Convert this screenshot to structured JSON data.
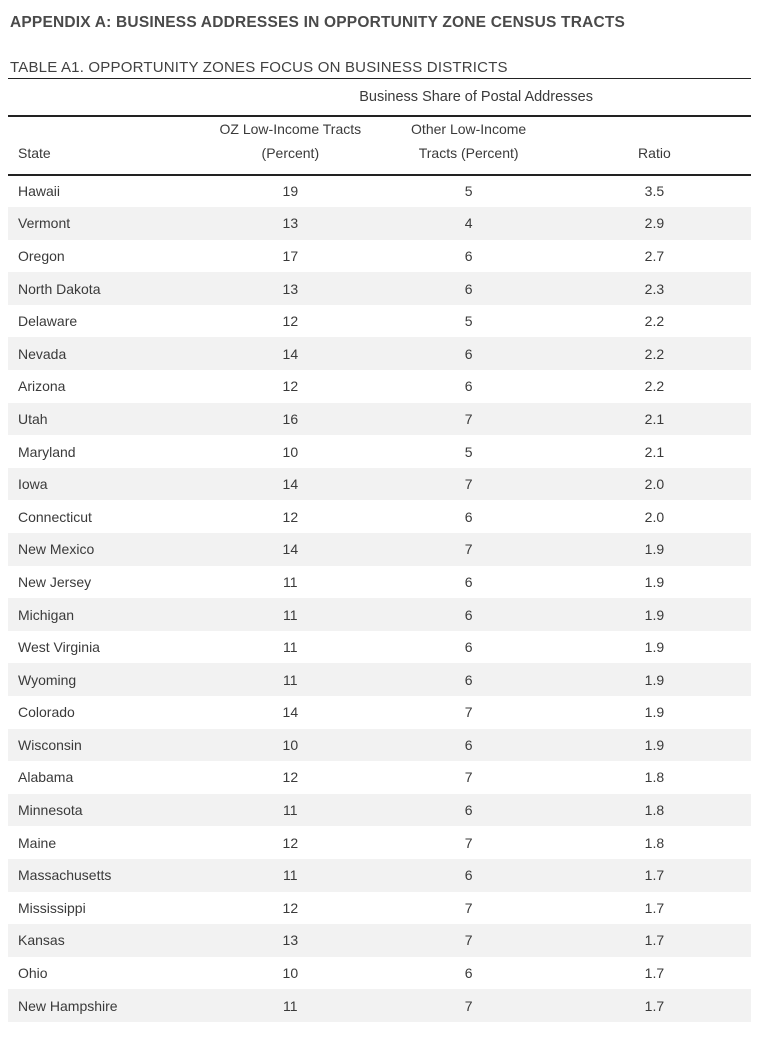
{
  "page": {
    "appendix_title": "APPENDIX A: BUSINESS ADDRESSES IN OPPORTUNITY ZONE CENSUS TRACTS",
    "table_title": "TABLE A1. OPPORTUNITY ZONES FOCUS ON BUSINESS DISTRICTS"
  },
  "table": {
    "span_header": "Business Share of Postal Addresses",
    "columns": {
      "state": "State",
      "oz": {
        "line1": "OZ Low-Income Tracts",
        "line2": "(Percent)"
      },
      "other": {
        "line1": "Other Low-Income",
        "line2": "Tracts (Percent)"
      },
      "ratio": "Ratio"
    },
    "rows": [
      {
        "state": "Hawaii",
        "oz": 19,
        "other": 5,
        "ratio": "3.5"
      },
      {
        "state": "Vermont",
        "oz": 13,
        "other": 4,
        "ratio": "2.9"
      },
      {
        "state": "Oregon",
        "oz": 17,
        "other": 6,
        "ratio": "2.7"
      },
      {
        "state": "North Dakota",
        "oz": 13,
        "other": 6,
        "ratio": "2.3"
      },
      {
        "state": "Delaware",
        "oz": 12,
        "other": 5,
        "ratio": "2.2"
      },
      {
        "state": "Nevada",
        "oz": 14,
        "other": 6,
        "ratio": "2.2"
      },
      {
        "state": "Arizona",
        "oz": 12,
        "other": 6,
        "ratio": "2.2"
      },
      {
        "state": "Utah",
        "oz": 16,
        "other": 7,
        "ratio": "2.1"
      },
      {
        "state": "Maryland",
        "oz": 10,
        "other": 5,
        "ratio": "2.1"
      },
      {
        "state": "Iowa",
        "oz": 14,
        "other": 7,
        "ratio": "2.0"
      },
      {
        "state": "Connecticut",
        "oz": 12,
        "other": 6,
        "ratio": "2.0"
      },
      {
        "state": "New Mexico",
        "oz": 14,
        "other": 7,
        "ratio": "1.9"
      },
      {
        "state": "New Jersey",
        "oz": 11,
        "other": 6,
        "ratio": "1.9"
      },
      {
        "state": "Michigan",
        "oz": 11,
        "other": 6,
        "ratio": "1.9"
      },
      {
        "state": "West Virginia",
        "oz": 11,
        "other": 6,
        "ratio": "1.9"
      },
      {
        "state": "Wyoming",
        "oz": 11,
        "other": 6,
        "ratio": "1.9"
      },
      {
        "state": "Colorado",
        "oz": 14,
        "other": 7,
        "ratio": "1.9"
      },
      {
        "state": "Wisconsin",
        "oz": 10,
        "other": 6,
        "ratio": "1.9"
      },
      {
        "state": "Alabama",
        "oz": 12,
        "other": 7,
        "ratio": "1.8"
      },
      {
        "state": "Minnesota",
        "oz": 11,
        "other": 6,
        "ratio": "1.8"
      },
      {
        "state": "Maine",
        "oz": 12,
        "other": 7,
        "ratio": "1.8"
      },
      {
        "state": "Massachusetts",
        "oz": 11,
        "other": 6,
        "ratio": "1.7"
      },
      {
        "state": "Mississippi",
        "oz": 12,
        "other": 7,
        "ratio": "1.7"
      },
      {
        "state": "Kansas",
        "oz": 13,
        "other": 7,
        "ratio": "1.7"
      },
      {
        "state": "Ohio",
        "oz": 10,
        "other": 6,
        "ratio": "1.7"
      },
      {
        "state": "New Hampshire",
        "oz": 11,
        "other": 7,
        "ratio": "1.7"
      }
    ]
  },
  "colors": {
    "text": "#3a3a3a",
    "title": "#4a4a4a",
    "rule": "#222222",
    "stripe": "#f2f2f2",
    "background": "#ffffff"
  }
}
